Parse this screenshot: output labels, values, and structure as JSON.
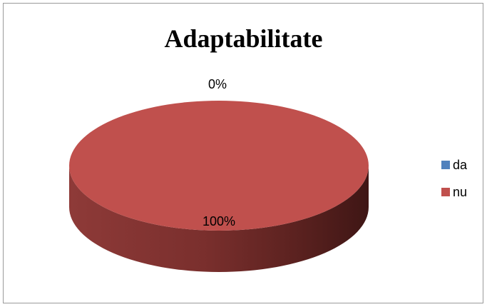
{
  "chart_data": {
    "type": "pie",
    "title": "Adaptabilitate",
    "categories": [
      "da",
      "nu"
    ],
    "values": [
      0,
      100
    ],
    "data_labels": [
      "0%",
      "100%"
    ],
    "colors": [
      "#4f81bd",
      "#c0504d"
    ],
    "legend_position": "right",
    "style": "3d"
  }
}
